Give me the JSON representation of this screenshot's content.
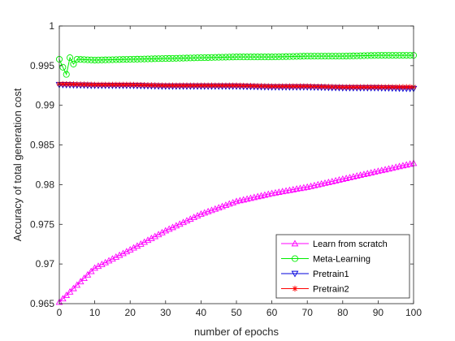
{
  "chart_data": {
    "type": "line",
    "title": "",
    "xlabel": "number of epochs",
    "ylabel": "Accuracy of total generation cost",
    "xlim": [
      0,
      100
    ],
    "ylim": [
      0.965,
      1.0
    ],
    "xticks": [
      0,
      10,
      20,
      30,
      40,
      50,
      60,
      70,
      80,
      90,
      100
    ],
    "xtick_labels": [
      "0",
      "10",
      "20",
      "30",
      "40",
      "50",
      "60",
      "70",
      "80",
      "90",
      "100"
    ],
    "yticks": [
      0.965,
      0.97,
      0.975,
      0.98,
      0.985,
      0.99,
      0.995,
      1.0
    ],
    "ytick_labels": [
      "0.965",
      "0.97",
      "0.975",
      "0.98",
      "0.985",
      "0.99",
      "0.995",
      "1"
    ],
    "grid": false,
    "legend_position": "bottom-right",
    "series": [
      {
        "name": "Learn from scratch",
        "color": "#ff00ff",
        "marker": "triangle-up",
        "x": [
          0,
          10,
          20,
          30,
          40,
          50,
          60,
          70,
          80,
          90,
          100
        ],
        "y": [
          0.9652,
          0.9695,
          0.9718,
          0.9742,
          0.9763,
          0.9779,
          0.9789,
          0.9797,
          0.9807,
          0.9817,
          0.9827
        ]
      },
      {
        "name": "Meta-Learning",
        "color": "#00ee00",
        "marker": "circle",
        "x": [
          0,
          1,
          2,
          3,
          4,
          5,
          10,
          20,
          30,
          40,
          50,
          60,
          70,
          80,
          90,
          100
        ],
        "y": [
          0.9958,
          0.9948,
          0.9939,
          0.996,
          0.9952,
          0.9958,
          0.9957,
          0.9958,
          0.9959,
          0.996,
          0.9961,
          0.9961,
          0.9962,
          0.9962,
          0.9963,
          0.9963
        ]
      },
      {
        "name": "Pretrain1",
        "color": "#0000dd",
        "marker": "triangle-down",
        "x": [
          0,
          10,
          20,
          30,
          40,
          50,
          60,
          70,
          80,
          90,
          100
        ],
        "y": [
          0.9926,
          0.9925,
          0.9925,
          0.9924,
          0.9924,
          0.9924,
          0.9923,
          0.9923,
          0.9922,
          0.9922,
          0.9921
        ]
      },
      {
        "name": "Pretrain2",
        "color": "#ff0000",
        "marker": "asterisk",
        "x": [
          0,
          10,
          20,
          30,
          40,
          50,
          60,
          70,
          80,
          90,
          100
        ],
        "y": [
          0.9927,
          0.9926,
          0.9926,
          0.9925,
          0.9925,
          0.9925,
          0.9924,
          0.9924,
          0.9923,
          0.9923,
          0.9923
        ]
      }
    ]
  }
}
